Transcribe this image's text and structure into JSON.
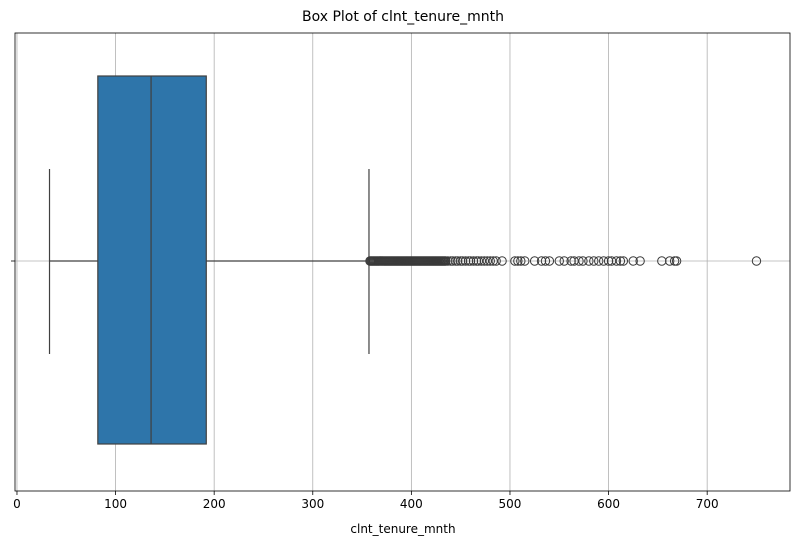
{
  "chart_data": {
    "type": "box",
    "title": "Box Plot of clnt_tenure_mnth",
    "xlabel": "clnt_tenure_mnth",
    "ylabel": "",
    "xlim": [
      -2,
      784
    ],
    "x_ticks": [
      0,
      100,
      200,
      300,
      400,
      500,
      600,
      700
    ],
    "grid": true,
    "orientation": "horizontal",
    "box": {
      "whisker_low": 33,
      "q1": 82,
      "median": 136,
      "q3": 192,
      "whisker_high": 357
    },
    "outliers": [
      358,
      359,
      360,
      361,
      362,
      363,
      364,
      365,
      366,
      367,
      368,
      369,
      370,
      371,
      372,
      373,
      374,
      375,
      376,
      377,
      378,
      379,
      380,
      381,
      382,
      383,
      384,
      385,
      386,
      387,
      388,
      389,
      390,
      391,
      392,
      393,
      394,
      395,
      396,
      397,
      398,
      399,
      400,
      401,
      402,
      403,
      404,
      405,
      406,
      407,
      408,
      409,
      410,
      411,
      412,
      413,
      414,
      415,
      416,
      417,
      418,
      419,
      420,
      421,
      422,
      423,
      424,
      425,
      426,
      427,
      428,
      429,
      430,
      431,
      432,
      433,
      434,
      435,
      437,
      440,
      442,
      445,
      447,
      450,
      452,
      455,
      458,
      460,
      463,
      466,
      468,
      471,
      474,
      477,
      480,
      483,
      486,
      492,
      505,
      508,
      511,
      515,
      525,
      532,
      536,
      540,
      550,
      555,
      562,
      565,
      570,
      574,
      580,
      585,
      590,
      595,
      600,
      603,
      608,
      612,
      615,
      625,
      632,
      654,
      662,
      667,
      669,
      750
    ],
    "colors": {
      "box_fill": "#2e75aa",
      "line": "#404040",
      "grid": "#b0b0b0"
    }
  }
}
